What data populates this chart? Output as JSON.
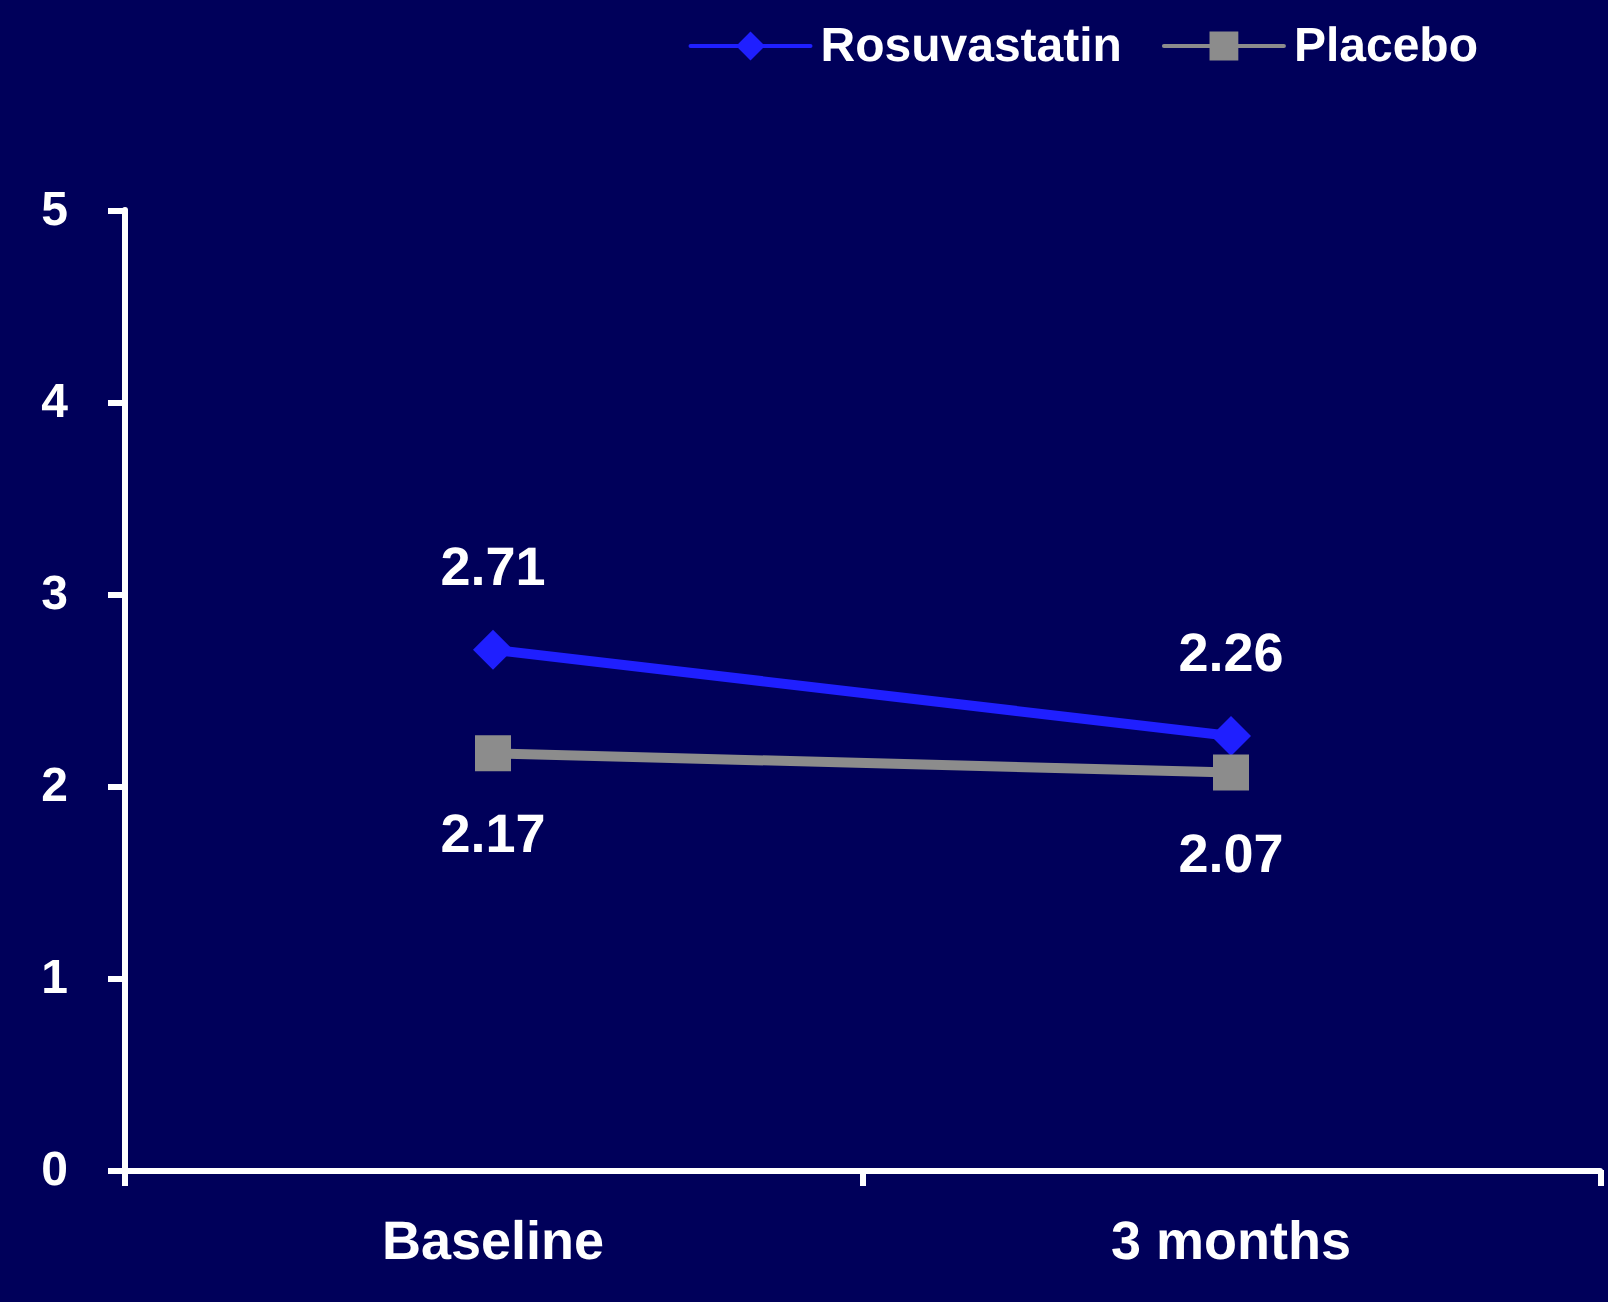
{
  "chart_data": {
    "type": "line",
    "categories": [
      "Baseline",
      "3 months"
    ],
    "series": [
      {
        "name": "Rosuvastatin",
        "color": "#1f1fff",
        "marker": "diamond",
        "values": [
          2.71,
          2.26
        ]
      },
      {
        "name": "Placebo",
        "color": "#8c8c8c",
        "marker": "square",
        "values": [
          2.17,
          2.07
        ]
      }
    ],
    "ylim": [
      0,
      5
    ],
    "yticks": [
      0,
      1,
      2,
      3,
      4,
      5
    ],
    "grid": false,
    "legend": "top right",
    "data_labels": true,
    "line_style": "solid"
  }
}
